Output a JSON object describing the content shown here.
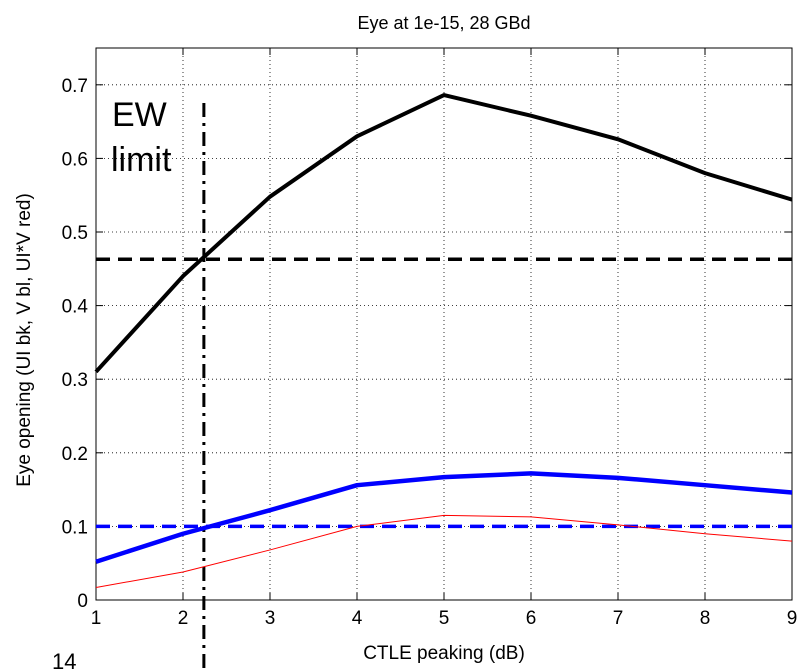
{
  "chart_data": {
    "type": "line",
    "title": "Eye at 1e-15, 28 GBd",
    "xlabel": "CTLE peaking (dB)",
    "ylabel": "Eye opening (UI bk, V bl, UI*V red)",
    "xlim": [
      1,
      9
    ],
    "ylim": [
      0,
      0.75
    ],
    "x_ticks": [
      1,
      2,
      3,
      4,
      5,
      6,
      7,
      8,
      9
    ],
    "y_ticks": [
      0,
      0.1,
      0.2,
      0.3,
      0.4,
      0.5,
      0.6,
      0.7
    ],
    "y_tick_labels": [
      "0",
      "0.1",
      "0.2",
      "0.3",
      "0.4",
      "0.5",
      "0.6",
      "0.7"
    ],
    "grid": true,
    "x": [
      1,
      2,
      3,
      4,
      5,
      6,
      7,
      8,
      9
    ],
    "series": [
      {
        "color": "#000000",
        "values": [
          0.31,
          0.44,
          0.548,
          0.63,
          0.686,
          0.658,
          0.626,
          0.58,
          0.544
        ]
      },
      {
        "color": "#0000ff",
        "values": [
          0.052,
          0.09,
          0.122,
          0.156,
          0.167,
          0.172,
          0.166,
          0.156,
          0.146
        ]
      },
      {
        "color": "#ff0000",
        "values": [
          0.017,
          0.038,
          0.068,
          0.1,
          0.115,
          0.113,
          0.102,
          0.09,
          0.08
        ]
      }
    ],
    "reference_lines": [
      {
        "orientation": "horizontal",
        "value": 0.463,
        "color": "#000000",
        "style": "dashed"
      },
      {
        "orientation": "horizontal",
        "value": 0.1,
        "color": "#0000ff",
        "style": "dashed"
      },
      {
        "orientation": "vertical",
        "value": 2.24,
        "color": "#000000",
        "style": "dash-dot"
      }
    ],
    "annotations": [
      "EW",
      "limit"
    ]
  },
  "page_number": "14"
}
